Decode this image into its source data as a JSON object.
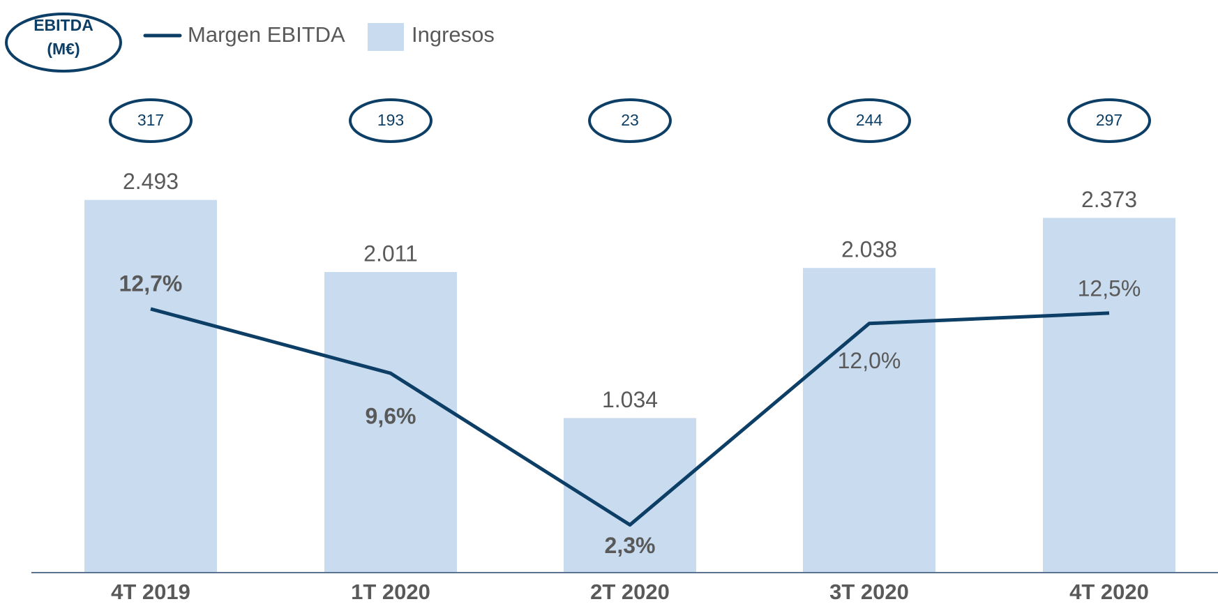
{
  "chart_data": {
    "type": "bar",
    "categories": [
      "4T 2019",
      "1T 2020",
      "2T 2020",
      "3T 2020",
      "4T 2020"
    ],
    "series": [
      {
        "name": "Margen EBITDA",
        "type": "line",
        "axis": "y2",
        "color": "#0d3f66",
        "values": [
          12.7,
          9.6,
          2.3,
          12.0,
          12.5
        ],
        "value_labels": [
          "12,7%",
          "9,6%",
          "2,3%",
          "12,0%",
          "12,5%"
        ]
      },
      {
        "name": "Ingresos",
        "type": "bar",
        "color": "#c9dbef",
        "values": [
          2493,
          2011,
          1034,
          2038,
          2373
        ],
        "value_labels": [
          "2.493",
          "2.011",
          "1.034",
          "2.038",
          "2.373"
        ]
      }
    ],
    "ebitda": {
      "label": [
        "EBITDA",
        "(M€)"
      ],
      "values": [
        317,
        193,
        23,
        244,
        297
      ]
    },
    "ylim": [
      0,
      3000
    ],
    "y2lim": [
      0,
      21.6
    ]
  }
}
